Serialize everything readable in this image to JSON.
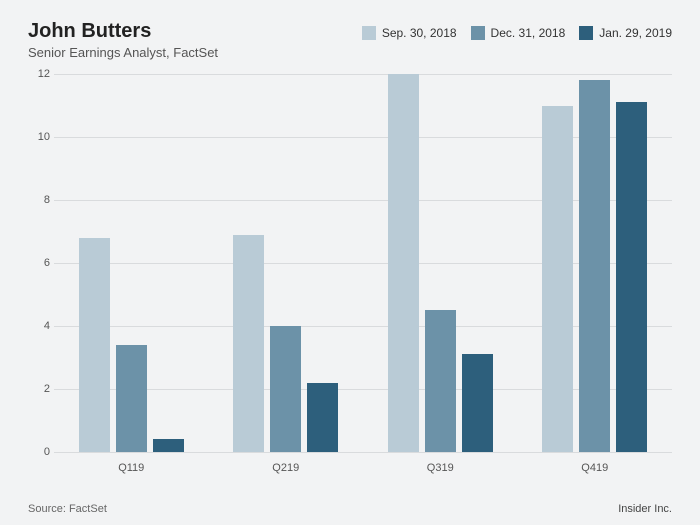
{
  "title": "John Butters",
  "subtitle": "Senior Earnings Analyst, FactSet",
  "source_label": "Source: FactSet",
  "attribution": "Insider Inc.",
  "chart": {
    "type": "bar",
    "background_color": "#f2f3f4",
    "grid_color": "#d9dbdd",
    "label_font_size": 11,
    "title_font_size": 20,
    "subtitle_font_size": 13,
    "ylim_min": 0,
    "ylim_max": 12,
    "ytick_step": 2,
    "categories": [
      "Q119",
      "Q219",
      "Q319",
      "Q419"
    ],
    "series": [
      {
        "label": "Sep. 30, 2018",
        "color": "#b9cbd6",
        "values": [
          6.8,
          6.9,
          12.0,
          11.0
        ]
      },
      {
        "label": "Dec. 31, 2018",
        "color": "#6c92a8",
        "values": [
          3.4,
          4.0,
          4.5,
          11.8
        ]
      },
      {
        "label": "Jan. 29, 2019",
        "color": "#2d5f7c",
        "values": [
          0.4,
          2.2,
          3.1,
          11.1
        ]
      }
    ],
    "group_gap_pct": 8,
    "bar_gap_pct": 1.0
  }
}
